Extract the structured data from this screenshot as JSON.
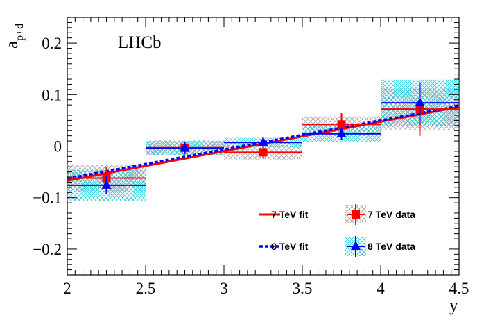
{
  "chart_data": {
    "type": "scatter",
    "title": "",
    "annotation": "LHCb",
    "xlabel": "y",
    "ylabel_main": "a",
    "ylabel_sub": "p+d",
    "xlim": [
      2,
      4.5
    ],
    "ylim": [
      -0.25,
      0.25
    ],
    "x_ticks": [
      2,
      2.5,
      3,
      3.5,
      4,
      4.5
    ],
    "x_tick_labels": [
      "2",
      "2.5",
      "3",
      "3.5",
      "4",
      "4.5"
    ],
    "y_ticks": [
      -0.2,
      -0.1,
      0,
      0.1,
      0.2
    ],
    "y_tick_labels": [
      "−0.2",
      "−0.1",
      "0",
      "0.1",
      "0.2"
    ],
    "series": [
      {
        "name": "7 TeV data",
        "color": "#ff0000",
        "marker": "square",
        "x": [
          2.25,
          2.75,
          3.25,
          3.75,
          4.25
        ],
        "x_err": [
          0.25,
          0.25,
          0.25,
          0.25,
          0.25
        ],
        "values": [
          -0.062,
          -0.003,
          -0.012,
          0.042,
          0.072
        ],
        "stat_err": [
          0.022,
          0.012,
          0.012,
          0.022,
          0.052
        ],
        "syst_err": [
          0.026,
          0.014,
          0.014,
          0.016,
          0.04
        ]
      },
      {
        "name": "8 TeV data",
        "color": "#0000ff",
        "marker": "triangle",
        "x": [
          2.25,
          2.75,
          3.25,
          3.75,
          4.25
        ],
        "x_err": [
          0.25,
          0.25,
          0.25,
          0.25,
          0.25
        ],
        "values": [
          -0.076,
          -0.004,
          0.007,
          0.024,
          0.084
        ],
        "stat_err": [
          0.017,
          0.012,
          0.01,
          0.012,
          0.04
        ],
        "syst_err": [
          0.03,
          0.014,
          0.009,
          0.016,
          0.045
        ]
      }
    ],
    "fits": [
      {
        "name": "7 TeV fit",
        "color": "#ff0000",
        "style": "solid",
        "x": [
          2,
          4.5
        ],
        "y": [
          -0.067,
          0.076
        ]
      },
      {
        "name": "8 TeV fit",
        "color": "#0000ff",
        "style": "dashed",
        "x": [
          2,
          4.5
        ],
        "y": [
          -0.063,
          0.078
        ]
      }
    ],
    "legend": {
      "placement": "bottom-right",
      "entries": [
        "7 TeV fit",
        "7 TeV data",
        "8 TeV fit",
        "8 TeV data"
      ]
    }
  }
}
